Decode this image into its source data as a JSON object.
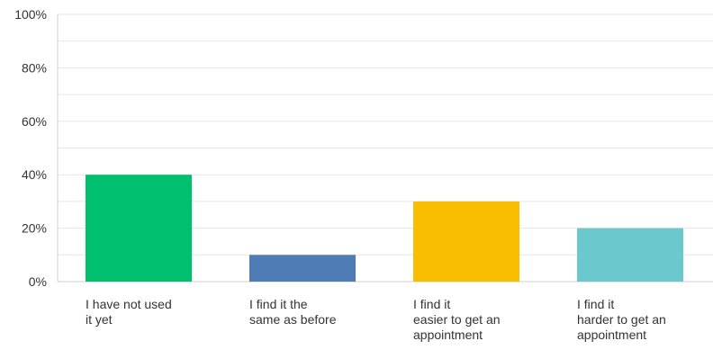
{
  "chart_data": {
    "type": "bar",
    "title": "",
    "xlabel": "",
    "ylabel": "",
    "ylim": [
      0,
      100
    ],
    "y_ticks": [
      0,
      20,
      40,
      60,
      80,
      100
    ],
    "y_tick_labels": [
      "0%",
      "20%",
      "40%",
      "60%",
      "80%",
      "100%"
    ],
    "grid": true,
    "categories": [
      [
        "I have not used",
        "it yet"
      ],
      [
        "I find it the",
        "same as before"
      ],
      [
        "I find it",
        "easier to get an",
        "appointment"
      ],
      [
        "I find it",
        "harder to get an",
        "appointment"
      ]
    ],
    "values": [
      40,
      10,
      30,
      20
    ],
    "colors": [
      "#00bf6f",
      "#507cb6",
      "#f9be00",
      "#6bc8cd"
    ]
  }
}
